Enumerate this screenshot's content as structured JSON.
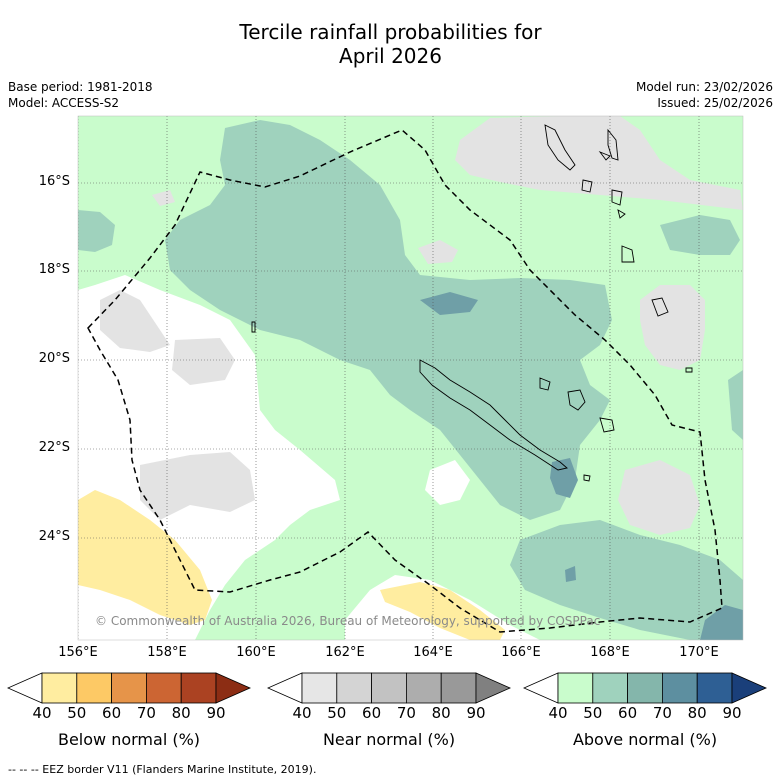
{
  "header": {
    "title_line1": "Tercile rainfall probabilities for",
    "title_line2": "April 2026",
    "base_period": "Base period: 1981-2018",
    "model": "Model: ACCESS-S2",
    "model_run": "Model run: 23/02/2026",
    "issued": "Issued: 25/02/2026"
  },
  "map": {
    "lat_labels": [
      "16°S",
      "18°S",
      "20°S",
      "22°S",
      "24°S"
    ],
    "lon_labels": [
      "156°E",
      "158°E",
      "160°E",
      "162°E",
      "164°E",
      "166°E",
      "168°E",
      "170°E"
    ],
    "copyright": "© Commonwealth of Australia 2026, Bureau of Meteorology, supported by COSPPac"
  },
  "colorbars": [
    {
      "label": "Below normal (%)",
      "ticks": [
        "40",
        "50",
        "60",
        "70",
        "80",
        "90"
      ],
      "colors": [
        "#ffffff",
        "#ffeda0",
        "#fdc965",
        "#e69449",
        "#cc6533",
        "#ab4222",
        "#8c2d14"
      ]
    },
    {
      "label": "Near normal (%)",
      "ticks": [
        "40",
        "50",
        "60",
        "70",
        "80",
        "90"
      ],
      "colors": [
        "#ffffff",
        "#e6e6e6",
        "#d4d4d4",
        "#c2c2c2",
        "#adadad",
        "#999999",
        "#808080"
      ]
    },
    {
      "label": "Above normal (%)",
      "ticks": [
        "40",
        "50",
        "60",
        "70",
        "80",
        "90"
      ],
      "colors": [
        "#ffffff",
        "#c9fccc",
        "#9fd2bd",
        "#84b6ab",
        "#5d8fa0",
        "#2e5f94",
        "#1a3f7a"
      ]
    }
  ],
  "footnote": "-- -- -- EEZ border V11 (Flanders Marine Institute, 2019).",
  "colors": {
    "green1": "#c9fccc",
    "green2": "#9fd2bd",
    "teal3": "#6f9fa7",
    "grey1": "#e3e3e3",
    "yellow1": "#ffeda0"
  }
}
